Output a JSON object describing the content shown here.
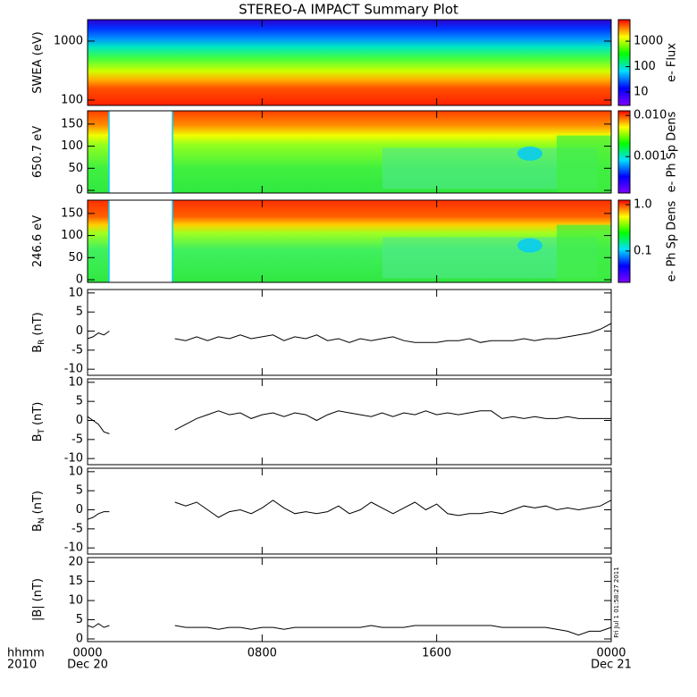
{
  "title": "STEREO-A IMPACT Summary Plot",
  "x_axis": {
    "xlim": [
      0,
      24
    ],
    "xticks": [
      {
        "value": 0,
        "label": "0000"
      },
      {
        "value": 8,
        "label": "0800"
      },
      {
        "value": 16,
        "label": "1600"
      },
      {
        "value": 24,
        "label": "0000"
      }
    ],
    "date_labels": [
      "Dec 20",
      "Dec 21"
    ],
    "corner_labels": [
      "hhmm",
      "2010"
    ]
  },
  "timestamp": "Fri Jul  1 01:58:27 2011",
  "chart_data": [
    {
      "type": "spectrogram",
      "ylabel": "SWEA (eV)",
      "ylog": true,
      "ylim": [
        81,
        2310
      ],
      "yticks": [
        100,
        1000
      ],
      "colorbar": {
        "label": "e- Flux",
        "log": true,
        "clim": [
          3,
          7000
        ],
        "cticks": [
          10,
          100,
          1000
        ]
      }
    },
    {
      "type": "spectrogram",
      "ylabel": "650.7 eV",
      "ylim": [
        -6,
        180
      ],
      "yticks": [
        0,
        50,
        100,
        150
      ],
      "colorbar": {
        "label": "e- Ph Sp Dens",
        "log": true,
        "clim": [
          0.00013,
          0.013
        ],
        "cticks": [
          {
            "value": 0.01,
            "label": "0.010"
          },
          0.001
        ]
      }
    },
    {
      "type": "spectrogram",
      "ylabel": "246.6 eV",
      "ylim": [
        -6,
        180
      ],
      "yticks": [
        0,
        50,
        100,
        150
      ],
      "colorbar": {
        "label": "e- Ph Sp Dens",
        "log": true,
        "clim": [
          0.021,
          1.25
        ],
        "cticks": [
          {
            "value": 1,
            "label": "1.0"
          },
          0.1
        ]
      }
    },
    {
      "type": "line",
      "ylabel": "B",
      "ylabel_sub": "R",
      "ylabel_unit": "(nT)",
      "ylim": [
        -11.6,
        10.9
      ],
      "yticks": [
        -10,
        -5,
        0,
        5,
        10
      ],
      "color": "#000000",
      "x": [
        0,
        0.25,
        0.5,
        0.75,
        1,
        2.5,
        4,
        4.5,
        5,
        5.5,
        6,
        6.5,
        7,
        7.5,
        8,
        8.5,
        9,
        9.5,
        10,
        10.5,
        11,
        11.5,
        12,
        12.5,
        13,
        13.5,
        14,
        14.5,
        15,
        15.5,
        16,
        16.5,
        17,
        17.5,
        18,
        18.5,
        19,
        19.5,
        20,
        20.5,
        21,
        21.5,
        22,
        22.5,
        23,
        23.5,
        24
      ],
      "values": [
        -2,
        -1.5,
        -0.5,
        -1,
        0,
        null,
        -2,
        -2.5,
        -1.5,
        -2.5,
        -1.5,
        -2,
        -1,
        -2,
        -1.5,
        -1,
        -2.5,
        -1.5,
        -2,
        -1,
        -2.5,
        -2,
        -3,
        -2,
        -2.5,
        -2,
        -1.5,
        -2.5,
        -3,
        -3,
        -3,
        -2.5,
        -2.5,
        -2,
        -3,
        -2.5,
        -2.5,
        -2.5,
        -2,
        -2.5,
        -2,
        -2,
        -1.5,
        -1,
        -0.5,
        0.5,
        2
      ]
    },
    {
      "type": "line",
      "ylabel": "B",
      "ylabel_sub": "T",
      "ylabel_unit": "(nT)",
      "ylim": [
        -11.6,
        10.9
      ],
      "yticks": [
        -10,
        -5,
        0,
        5,
        10
      ],
      "color": "#000000",
      "x": [
        0,
        0.25,
        0.5,
        0.75,
        1,
        2.5,
        4,
        4.5,
        5,
        5.5,
        6,
        6.5,
        7,
        7.5,
        8,
        8.5,
        9,
        9.5,
        10,
        10.5,
        11,
        11.5,
        12,
        12.5,
        13,
        13.5,
        14,
        14.5,
        15,
        15.5,
        16,
        16.5,
        17,
        17.5,
        18,
        18.5,
        19,
        19.5,
        20,
        20.5,
        21,
        21.5,
        22,
        22.5,
        23,
        23.5,
        24
      ],
      "values": [
        1,
        0,
        -1,
        -3,
        -3.5,
        null,
        -2.5,
        -1,
        0.5,
        1.5,
        2.5,
        1.5,
        2,
        0.5,
        1.5,
        2,
        1,
        2,
        1.5,
        0,
        1.5,
        2.5,
        2,
        1.5,
        1,
        2,
        1,
        2,
        1.5,
        2.5,
        1.5,
        2,
        1.5,
        2,
        2.5,
        2.5,
        0.5,
        1,
        0.5,
        1,
        0.5,
        0.5,
        1,
        0.5,
        0.5,
        0.5,
        0.5
      ]
    },
    {
      "type": "line",
      "ylabel": "B",
      "ylabel_sub": "N",
      "ylabel_unit": "(nT)",
      "ylim": [
        -11.6,
        10.9
      ],
      "yticks": [
        -10,
        -5,
        0,
        5,
        10
      ],
      "color": "#000000",
      "x": [
        0,
        0.25,
        0.5,
        0.75,
        1,
        2.5,
        4,
        4.5,
        5,
        5.5,
        6,
        6.5,
        7,
        7.5,
        8,
        8.5,
        9,
        9.5,
        10,
        10.5,
        11,
        11.5,
        12,
        12.5,
        13,
        13.5,
        14,
        14.5,
        15,
        15.5,
        16,
        16.5,
        17,
        17.5,
        18,
        18.5,
        19,
        19.5,
        20,
        20.5,
        21,
        21.5,
        22,
        22.5,
        23,
        23.5,
        24
      ],
      "values": [
        -2.5,
        -2,
        -1,
        -0.5,
        -0.5,
        null,
        2,
        1,
        2,
        0,
        -2,
        -0.5,
        0,
        -1,
        0.5,
        2.5,
        0.5,
        -1,
        -0.5,
        -1,
        -0.5,
        1,
        -1,
        0,
        2,
        0.5,
        -1,
        0.5,
        2,
        0,
        1.5,
        -1,
        -1.5,
        -1,
        -1,
        -0.5,
        -1,
        0,
        1,
        0.5,
        1,
        0,
        0.5,
        0,
        0.5,
        1,
        2.5
      ]
    },
    {
      "type": "line",
      "ylabel": "|B|",
      "ylabel_unit": "(nT)",
      "ylim": [
        -0.7,
        21.2
      ],
      "yticks": [
        0,
        5,
        10,
        15,
        20
      ],
      "color": "#000000",
      "x": [
        0,
        0.25,
        0.5,
        0.75,
        1,
        2.5,
        4,
        4.5,
        5,
        5.5,
        6,
        6.5,
        7,
        7.5,
        8,
        8.5,
        9,
        9.5,
        10,
        10.5,
        11,
        11.5,
        12,
        12.5,
        13,
        13.5,
        14,
        14.5,
        15,
        15.5,
        16,
        16.5,
        17,
        17.5,
        18,
        18.5,
        19,
        19.5,
        20,
        20.5,
        21,
        21.5,
        22,
        22.5,
        23,
        23.5,
        24
      ],
      "values": [
        3.5,
        3,
        4,
        3,
        3.5,
        null,
        3.5,
        3,
        3,
        3,
        2.5,
        3,
        3,
        2.5,
        3,
        3,
        2.5,
        3,
        3,
        3,
        3,
        3,
        3,
        3,
        3.5,
        3,
        3,
        3,
        3.5,
        3.5,
        3.5,
        3.5,
        3.5,
        3.5,
        3.5,
        3.5,
        3,
        3,
        3,
        3,
        3,
        2.5,
        2,
        1,
        2,
        2,
        3
      ]
    }
  ]
}
